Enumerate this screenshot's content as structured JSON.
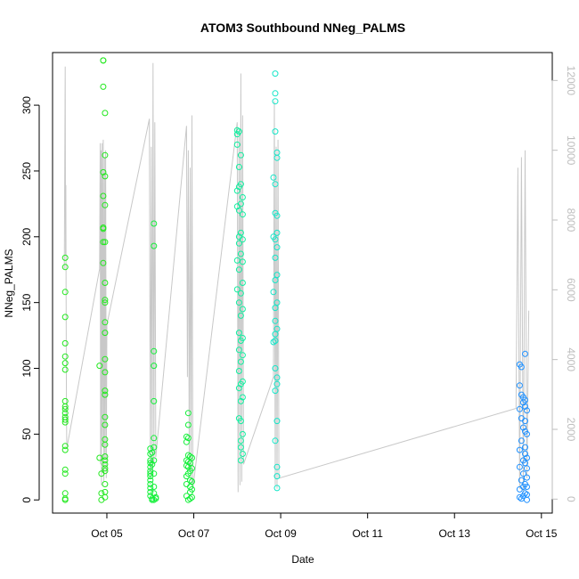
{
  "chart_data": {
    "type": "scatter",
    "title": "ATOM3 Southbound NNeg_PALMS",
    "xlabel": "Date",
    "ylabel": "NNeg_PALMS",
    "x_tick_labels": [
      "Oct 05",
      "Oct 07",
      "Oct 09",
      "Oct 11",
      "Oct 13",
      "Oct 15"
    ],
    "x_tick_values": [
      "2016-10-05",
      "2016-10-07",
      "2016-10-09",
      "2016-10-11",
      "2016-10-13",
      "2016-10-15"
    ],
    "xlim": [
      "2016-10-03 18:00",
      "2016-10-15 06:00"
    ],
    "ylim": [
      -10,
      340
    ],
    "y_ticks": [
      0,
      50,
      100,
      150,
      200,
      250,
      300
    ],
    "y2lim": [
      -400,
      12800
    ],
    "y2_ticks": [
      0,
      2000,
      4000,
      6000,
      8000,
      10000,
      12000
    ],
    "grid": false,
    "legend": "none",
    "point_shape": "open circle",
    "colors": {
      "g1": "#22e81e",
      "g2": "#14f03a",
      "g3": "#10f0a0",
      "g4": "#14e6c8",
      "g5": "#1e90ff",
      "line": "#c8c8c8"
    },
    "series": [
      {
        "color": "g1",
        "x": [
          "2016-10-04 01:00",
          "2016-10-04 01:00",
          "2016-10-04 01:00",
          "2016-10-04 01:00",
          "2016-10-04 01:00",
          "2016-10-04 01:00",
          "2016-10-04 01:00",
          "2016-10-04 01:00",
          "2016-10-04 01:00",
          "2016-10-04 01:00",
          "2016-10-04 01:00",
          "2016-10-04 01:00",
          "2016-10-04 01:00",
          "2016-10-04 01:00",
          "2016-10-04 01:00",
          "2016-10-04 01:00",
          "2016-10-04 01:00",
          "2016-10-04 01:00",
          "2016-10-04 01:00",
          "2016-10-04 01:00",
          "2016-10-04 01:00",
          "2016-10-04 01:00"
        ],
        "y": [
          184,
          177,
          158,
          139,
          119,
          109,
          104,
          99,
          75,
          71,
          69,
          66,
          63,
          61,
          59,
          41,
          38,
          23,
          20,
          5,
          1,
          0
        ]
      },
      {
        "color": "g1",
        "x": [
          "2016-10-04 20:00",
          "2016-10-04 20:00",
          "2016-10-04 21:00",
          "2016-10-04 21:00",
          "2016-10-04 21:00",
          "2016-10-04 22:00",
          "2016-10-04 22:00",
          "2016-10-04 22:00",
          "2016-10-04 22:00",
          "2016-10-04 22:00",
          "2016-10-04 22:00",
          "2016-10-04 22:00",
          "2016-10-04 22:00",
          "2016-10-04 22:00",
          "2016-10-04 23:00",
          "2016-10-04 23:00",
          "2016-10-04 23:00",
          "2016-10-04 23:00",
          "2016-10-04 23:00",
          "2016-10-04 23:00",
          "2016-10-04 23:00",
          "2016-10-04 23:00",
          "2016-10-04 23:00",
          "2016-10-04 23:00",
          "2016-10-04 23:00",
          "2016-10-04 23:00",
          "2016-10-04 23:00",
          "2016-10-04 23:00",
          "2016-10-04 23:00",
          "2016-10-04 23:00",
          "2016-10-04 23:00",
          "2016-10-04 23:00",
          "2016-10-04 23:00",
          "2016-10-04 23:00",
          "2016-10-04 23:00",
          "2016-10-04 23:00",
          "2016-10-04 23:00",
          "2016-10-04 23:00",
          "2016-10-04 23:00",
          "2016-10-04 23:00"
        ],
        "y": [
          102,
          32,
          20,
          5,
          0,
          334,
          334,
          314,
          249,
          231,
          207,
          206,
          196,
          180,
          294,
          262,
          246,
          224,
          196,
          165,
          152,
          150,
          135,
          127,
          107,
          97,
          83,
          80,
          63,
          57,
          46,
          42,
          33,
          30,
          27,
          24,
          22,
          12,
          6,
          2
        ]
      },
      {
        "color": "g2",
        "x": [
          "2016-10-06 00:00",
          "2016-10-06 00:00",
          "2016-10-06 00:00",
          "2016-10-06 00:00",
          "2016-10-06 00:00",
          "2016-10-06 00:00",
          "2016-10-06 00:00",
          "2016-10-06 00:00",
          "2016-10-06 00:00",
          "2016-10-06 00:00",
          "2016-10-06 00:00",
          "2016-10-06 00:00",
          "2016-10-06 00:00",
          "2016-10-06 01:00",
          "2016-10-06 01:00",
          "2016-10-06 01:00",
          "2016-10-06 01:00",
          "2016-10-06 02:00",
          "2016-10-06 02:00",
          "2016-10-06 02:00",
          "2016-10-06 02:00",
          "2016-10-06 02:00",
          "2016-10-06 02:00",
          "2016-10-06 02:00",
          "2016-10-06 02:00",
          "2016-10-06 02:00",
          "2016-10-06 02:00",
          "2016-10-06 02:00",
          "2016-10-06 02:00",
          "2016-10-06 03:00",
          "2016-10-06 03:00"
        ],
        "y": [
          39,
          35,
          30,
          28,
          25,
          22,
          20,
          18,
          15,
          12,
          9,
          6,
          3,
          1,
          0,
          36,
          27,
          210,
          193,
          113,
          102,
          75,
          47,
          40,
          30,
          20,
          10,
          5,
          0,
          2,
          1
        ]
      },
      {
        "color": "g2",
        "x": [
          "2016-10-06 20:00",
          "2016-10-06 20:00",
          "2016-10-06 20:00",
          "2016-10-06 20:00",
          "2016-10-06 20:00",
          "2016-10-06 20:00",
          "2016-10-06 20:00",
          "2016-10-06 21:00",
          "2016-10-06 21:00",
          "2016-10-06 21:00",
          "2016-10-06 21:00",
          "2016-10-06 21:00",
          "2016-10-06 21:00",
          "2016-10-06 21:00",
          "2016-10-06 21:00",
          "2016-10-06 22:00",
          "2016-10-06 22:00",
          "2016-10-06 22:00",
          "2016-10-06 22:00",
          "2016-10-06 22:00",
          "2016-10-06 22:00",
          "2016-10-06 22:00",
          "2016-10-06 23:00",
          "2016-10-06 23:00",
          "2016-10-06 23:00",
          "2016-10-06 23:00",
          "2016-10-06 23:00"
        ],
        "y": [
          48,
          44,
          30,
          26,
          18,
          12,
          3,
          66,
          57,
          47,
          34,
          29,
          25,
          20,
          0,
          33,
          28,
          22,
          15,
          10,
          6,
          1,
          32,
          24,
          14,
          8,
          2
        ]
      },
      {
        "color": "g3",
        "x": [
          "2016-10-08 00:00",
          "2016-10-08 00:00",
          "2016-10-08 00:00",
          "2016-10-08 00:00",
          "2016-10-08 00:00",
          "2016-10-08 00:00",
          "2016-10-08 00:00",
          "2016-10-08 01:00",
          "2016-10-08 01:00",
          "2016-10-08 01:00",
          "2016-10-08 01:00",
          "2016-10-08 01:00",
          "2016-10-08 01:00",
          "2016-10-08 01:00",
          "2016-10-08 01:00",
          "2016-10-08 01:00",
          "2016-10-08 01:00",
          "2016-10-08 01:00",
          "2016-10-08 01:00",
          "2016-10-08 01:00",
          "2016-10-08 02:00",
          "2016-10-08 02:00",
          "2016-10-08 02:00",
          "2016-10-08 02:00",
          "2016-10-08 02:00",
          "2016-10-08 02:00",
          "2016-10-08 02:00",
          "2016-10-08 02:00",
          "2016-10-08 02:00",
          "2016-10-08 02:00",
          "2016-10-08 02:00",
          "2016-10-08 02:00",
          "2016-10-08 02:00",
          "2016-10-08 02:00",
          "2016-10-08 02:00",
          "2016-10-08 03:00",
          "2016-10-08 03:00",
          "2016-10-08 03:00",
          "2016-10-08 03:00",
          "2016-10-08 03:00",
          "2016-10-08 03:00",
          "2016-10-08 03:00",
          "2016-10-08 03:00",
          "2016-10-08 03:00",
          "2016-10-08 03:00",
          "2016-10-08 03:00",
          "2016-10-08 03:00"
        ],
        "y": [
          281,
          278,
          270,
          235,
          223,
          182,
          160,
          280,
          253,
          238,
          220,
          200,
          195,
          175,
          150,
          127,
          114,
          98,
          85,
          62,
          262,
          240,
          225,
          203,
          187,
          157,
          140,
          121,
          105,
          88,
          75,
          60,
          45,
          40,
          30,
          230,
          217,
          198,
          181,
          165,
          145,
          123,
          110,
          90,
          78,
          50,
          35
        ]
      },
      {
        "color": "g4",
        "x": [
          "2016-10-08 20:00",
          "2016-10-08 20:00",
          "2016-10-08 20:00",
          "2016-10-08 20:00",
          "2016-10-08 21:00",
          "2016-10-08 21:00",
          "2016-10-08 21:00",
          "2016-10-08 21:00",
          "2016-10-08 21:00",
          "2016-10-08 21:00",
          "2016-10-08 21:00",
          "2016-10-08 21:00",
          "2016-10-08 21:00",
          "2016-10-08 21:00",
          "2016-10-08 21:00",
          "2016-10-08 21:00",
          "2016-10-08 21:00",
          "2016-10-08 21:00",
          "2016-10-08 21:00",
          "2016-10-08 21:00",
          "2016-10-08 22:00",
          "2016-10-08 22:00",
          "2016-10-08 22:00",
          "2016-10-08 22:00",
          "2016-10-08 22:00",
          "2016-10-08 22:00",
          "2016-10-08 22:00",
          "2016-10-08 22:00",
          "2016-10-08 22:00",
          "2016-10-08 22:00",
          "2016-10-08 22:00",
          "2016-10-08 22:00",
          "2016-10-08 22:00",
          "2016-10-08 22:00"
        ],
        "y": [
          245,
          200,
          158,
          120,
          324,
          309,
          303,
          280,
          240,
          218,
          198,
          184,
          167,
          146,
          136,
          126,
          121,
          100,
          83,
          45,
          264,
          260,
          216,
          203,
          192,
          171,
          150,
          130,
          93,
          88,
          60,
          25,
          18,
          9
        ]
      },
      {
        "color": "g5",
        "x": [
          "2016-10-14 12:00",
          "2016-10-14 12:00",
          "2016-10-14 12:00",
          "2016-10-14 12:00",
          "2016-10-14 12:00",
          "2016-10-14 12:00",
          "2016-10-14 12:00",
          "2016-10-14 13:00",
          "2016-10-14 13:00",
          "2016-10-14 13:00",
          "2016-10-14 13:00",
          "2016-10-14 13:00",
          "2016-10-14 13:00",
          "2016-10-14 14:00",
          "2016-10-14 14:00",
          "2016-10-14 14:00",
          "2016-10-14 14:00",
          "2016-10-14 14:00",
          "2016-10-14 14:00",
          "2016-10-14 14:00",
          "2016-10-14 15:00",
          "2016-10-14 15:00",
          "2016-10-14 15:00",
          "2016-10-14 15:00",
          "2016-10-14 15:00",
          "2016-10-14 15:00",
          "2016-10-14 15:00",
          "2016-10-14 15:00",
          "2016-10-14 15:00",
          "2016-10-14 15:00",
          "2016-10-14 16:00",
          "2016-10-14 16:00",
          "2016-10-14 16:00",
          "2016-10-14 16:00",
          "2016-10-14 16:00",
          "2016-10-14 16:00",
          "2016-10-14 16:00",
          "2016-10-14 16:00"
        ],
        "y": [
          103,
          87,
          69,
          38,
          25,
          8,
          2,
          101,
          80,
          62,
          45,
          15,
          1,
          78,
          74,
          55,
          30,
          20,
          10,
          3,
          111,
          76,
          71,
          60,
          52,
          40,
          35,
          28,
          12,
          5,
          68,
          50,
          32,
          24,
          17,
          10,
          4,
          0
        ]
      }
    ],
    "y2_series": {
      "color": "line",
      "x": [
        "2016-10-04 00:30",
        "2016-10-04 01:00",
        "2016-10-04 01:10",
        "2016-10-04 01:20",
        "2016-10-04 01:30",
        "2016-10-04 01:40",
        "2016-10-04 01:50",
        "2016-10-04 02:00",
        "2016-10-04 20:00",
        "2016-10-04 20:20",
        "2016-10-04 20:30",
        "2016-10-04 20:45",
        "2016-10-04 21:00",
        "2016-10-04 21:20",
        "2016-10-04 21:40",
        "2016-10-04 22:00",
        "2016-10-04 22:20",
        "2016-10-04 22:40",
        "2016-10-04 23:00",
        "2016-10-04 23:20",
        "2016-10-04 23:40",
        "2016-10-05 00:00",
        "2016-10-05 23:30",
        "2016-10-06 00:00",
        "2016-10-06 00:30",
        "2016-10-06 01:00",
        "2016-10-06 01:30",
        "2016-10-06 02:00",
        "2016-10-06 02:30",
        "2016-10-06 03:00",
        "2016-10-06 20:00",
        "2016-10-06 20:30",
        "2016-10-06 21:00",
        "2016-10-06 21:30",
        "2016-10-06 22:00",
        "2016-10-06 22:30",
        "2016-10-06 23:00",
        "2016-10-06 23:30",
        "2016-10-08 00:00",
        "2016-10-08 00:30",
        "2016-10-08 01:00",
        "2016-10-08 01:30",
        "2016-10-08 02:00",
        "2016-10-08 02:30",
        "2016-10-08 03:00",
        "2016-10-08 03:30",
        "2016-10-08 20:00",
        "2016-10-08 20:30",
        "2016-10-08 21:00",
        "2016-10-08 21:30",
        "2016-10-08 22:00",
        "2016-10-08 22:30",
        "2016-10-08 23:00",
        "2016-10-14 10:00",
        "2016-10-14 11:00",
        "2016-10-14 12:00",
        "2016-10-14 13:00",
        "2016-10-14 14:00",
        "2016-10-14 15:00",
        "2016-10-14 16:00",
        "2016-10-14 17:00"
      ],
      "y": [
        6600,
        12400,
        7000,
        9000,
        6000,
        2500,
        1700,
        1500,
        6600,
        10200,
        1000,
        10000,
        400,
        10200,
        1500,
        10300,
        500,
        9800,
        1200,
        10000,
        600,
        5000,
        10900,
        600,
        10100,
        800,
        12500,
        1000,
        10800,
        1200,
        10700,
        3500,
        10000,
        800,
        9500,
        500,
        11000,
        300,
        10800,
        200,
        10600,
        400,
        12200,
        500,
        11000,
        1000,
        3500,
        11400,
        400,
        10100,
        300,
        10300,
        600,
        2600,
        9500,
        300,
        9800,
        200,
        10000,
        600,
        5400
      ]
    }
  }
}
